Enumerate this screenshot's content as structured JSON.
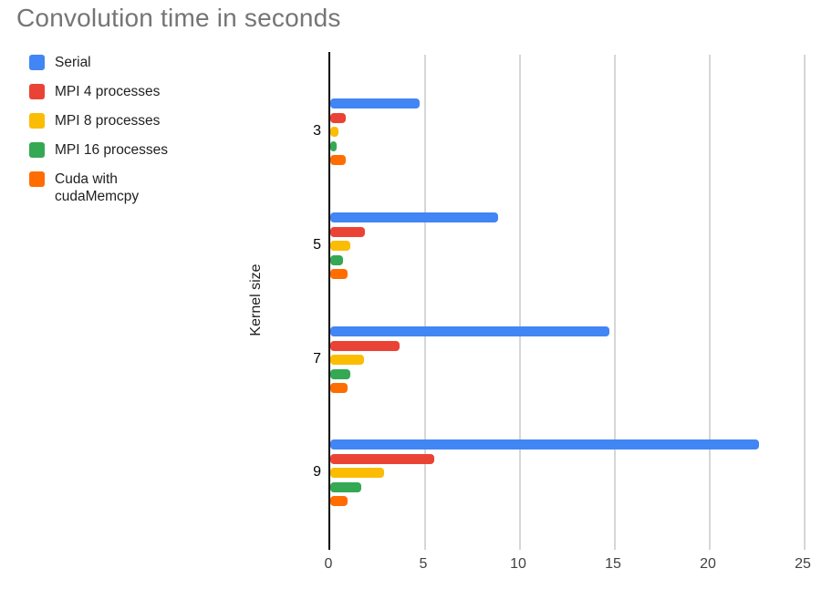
{
  "title": "Convolution time in seconds",
  "legend": {
    "position": "left",
    "items": [
      {
        "label": "Serial",
        "color": "#4285F4"
      },
      {
        "label": "MPI 4 processes",
        "color": "#EA4335"
      },
      {
        "label": "MPI 8 processes",
        "color": "#FBBC04"
      },
      {
        "label": "MPI 16 processes",
        "color": "#34A853"
      },
      {
        "label": "Cuda with cudaMemcpy",
        "color": "#FF6D01"
      }
    ]
  },
  "chart_data": {
    "type": "bar",
    "orientation": "horizontal",
    "title": "Convolution time in seconds",
    "ylabel": "Kernel size",
    "xlabel": "",
    "categories": [
      "3",
      "5",
      "7",
      "9"
    ],
    "series": [
      {
        "name": "Serial",
        "color": "#4285F4",
        "values": [
          4.7,
          8.85,
          14.7,
          22.6
        ]
      },
      {
        "name": "MPI 4 processes",
        "color": "#EA4335",
        "values": [
          0.8,
          1.85,
          3.65,
          5.5
        ]
      },
      {
        "name": "MPI 8 processes",
        "color": "#FBBC04",
        "values": [
          0.45,
          1.05,
          1.8,
          2.85
        ]
      },
      {
        "name": "MPI 16 processes",
        "color": "#34A853",
        "values": [
          0.35,
          0.65,
          1.05,
          1.65
        ]
      },
      {
        "name": "Cuda with cudaMemcpy",
        "color": "#FF6D01",
        "values": [
          0.8,
          0.9,
          0.9,
          0.9
        ]
      }
    ],
    "xlim": [
      0,
      25
    ],
    "x_ticks": [
      0,
      5,
      10,
      15,
      20,
      25
    ],
    "grid": true,
    "legend_position": "left",
    "axis_color": "#000000",
    "gridline_color": "#d6d6d6"
  }
}
